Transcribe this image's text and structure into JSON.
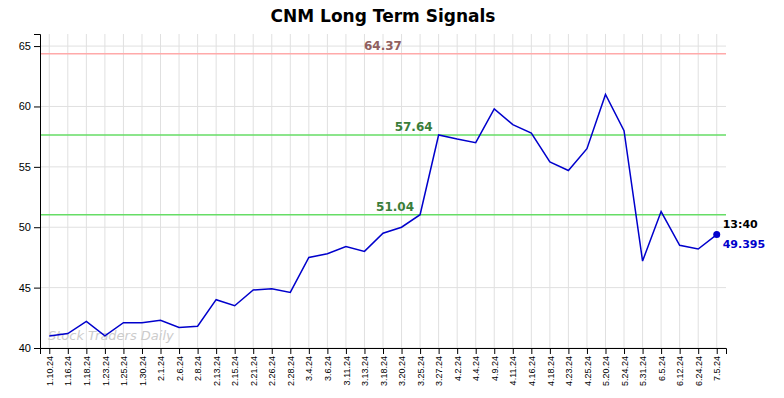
{
  "chart_data": {
    "type": "line",
    "title": "CNM Long Term Signals",
    "color": "#0000cc",
    "grid": true,
    "ylim": [
      40,
      66
    ],
    "yticks": [
      40,
      45,
      50,
      55,
      60,
      65
    ],
    "categories": [
      "1.10.24",
      "1.16.24",
      "1.18.24",
      "1.23.24",
      "1.25.24",
      "1.30.24",
      "2.1.24",
      "2.6.24",
      "2.8.24",
      "2.13.24",
      "2.15.24",
      "2.21.24",
      "2.26.24",
      "2.28.24",
      "3.4.24",
      "3.6.24",
      "3.11.24",
      "3.13.24",
      "3.18.24",
      "3.20.24",
      "3.25.24",
      "3.27.24",
      "4.2.24",
      "4.4.24",
      "4.9.24",
      "4.11.24",
      "4.16.24",
      "4.18.24",
      "4.23.24",
      "4.25.24",
      "5.20.24",
      "5.24.24",
      "5.31.24",
      "6.5.24",
      "6.12.24",
      "6.24.24",
      "7.5.24"
    ],
    "values": [
      41.0,
      41.2,
      42.2,
      41.0,
      42.1,
      42.1,
      42.3,
      41.7,
      41.8,
      44.0,
      43.5,
      44.8,
      44.9,
      44.6,
      47.5,
      47.8,
      48.4,
      48.0,
      49.5,
      50.0,
      51.04,
      57.64,
      57.3,
      57.0,
      59.8,
      58.5,
      57.8,
      55.4,
      54.7,
      56.5,
      61.0,
      58.0,
      47.2,
      51.3,
      48.5,
      48.2,
      49.395
    ],
    "reference_lines": [
      {
        "value": 64.37,
        "color": "#ffaaaa"
      },
      {
        "value": 57.64,
        "color": "#66dd66"
      },
      {
        "value": 51.04,
        "color": "#66dd66"
      }
    ],
    "last_point_label": "13:40",
    "watermark": "Stock Traders Daily"
  }
}
